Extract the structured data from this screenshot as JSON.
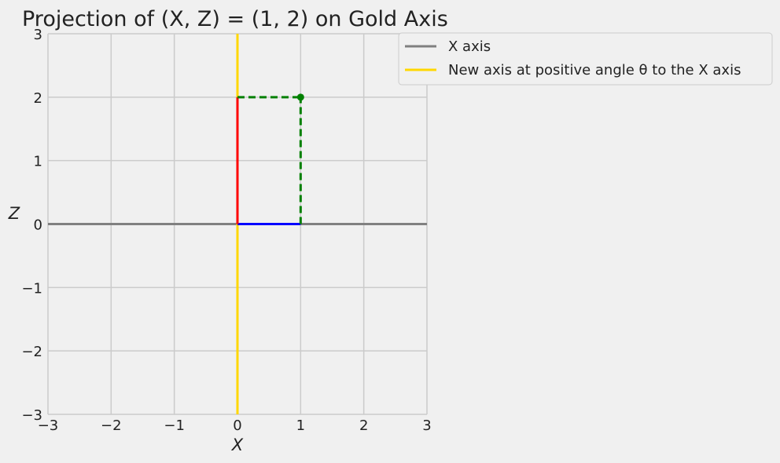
{
  "chart_data": {
    "type": "line",
    "title": "Projection of (X, Z) = (1, 2) on Gold Axis",
    "xlabel": "X",
    "ylabel": "Z",
    "xlim": [
      -3,
      3
    ],
    "ylim": [
      -3,
      3
    ],
    "xticks": [
      "−3",
      "−2",
      "−1",
      "0",
      "1",
      "2",
      "3"
    ],
    "yticks": [
      "−3",
      "−2",
      "−1",
      "0",
      "1",
      "2",
      "3"
    ],
    "grid": true,
    "legend_position": "outside-top-right",
    "series": [
      {
        "name": "X axis",
        "color": "#808080",
        "style": "solid",
        "x": [
          -3,
          3
        ],
        "y": [
          0,
          0
        ]
      },
      {
        "name": "New axis at positive angle θ to the X axis",
        "color": "#FFD700",
        "style": "solid",
        "x": [
          0,
          0
        ],
        "y": [
          -3,
          3
        ]
      },
      {
        "color": "#0000FF",
        "style": "solid",
        "x": [
          0,
          1
        ],
        "y": [
          0,
          0
        ]
      },
      {
        "color": "#FF0000",
        "style": "solid",
        "x": [
          0,
          0
        ],
        "y": [
          0,
          2
        ]
      },
      {
        "color": "#008000",
        "style": "dashed",
        "x": [
          1,
          1
        ],
        "y": [
          0,
          2
        ]
      },
      {
        "color": "#008000",
        "style": "dashed",
        "x": [
          0,
          1
        ],
        "y": [
          2,
          2
        ]
      }
    ],
    "points": [
      {
        "x": 1,
        "y": 2,
        "color": "#008000"
      }
    ]
  }
}
